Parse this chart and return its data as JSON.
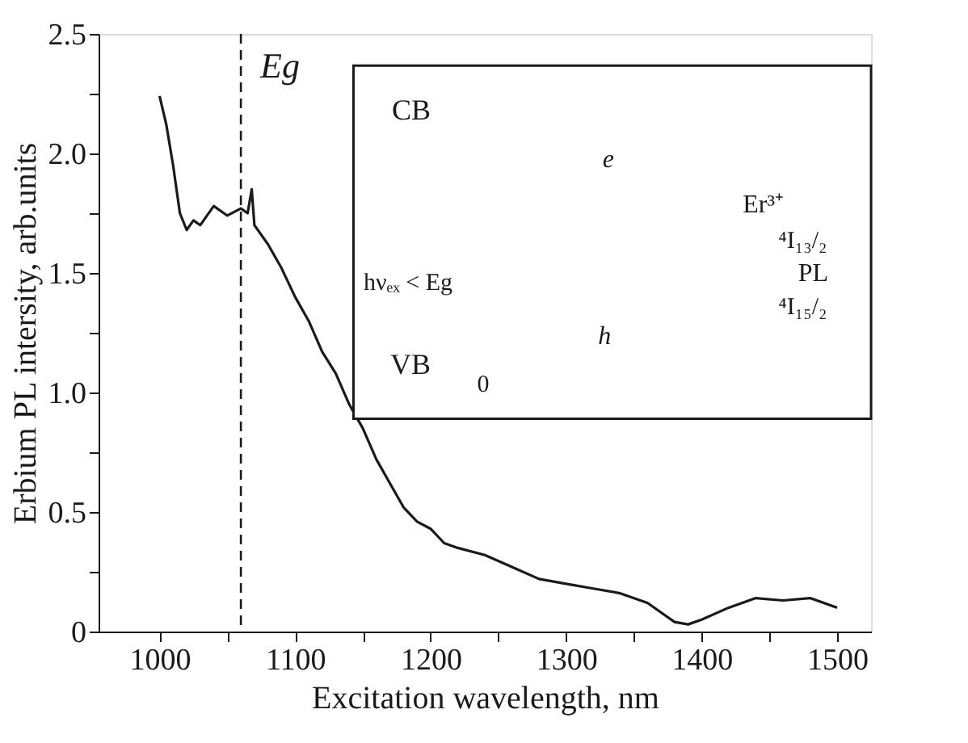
{
  "chart_data": {
    "type": "line",
    "xlabel": "Excitation wavelength, nm",
    "ylabel": "Erbium PL intersity, arb.units",
    "x": [
      1000,
      1005,
      1010,
      1015,
      1020,
      1025,
      1030,
      1040,
      1050,
      1060,
      1065,
      1068,
      1070,
      1080,
      1090,
      1100,
      1110,
      1120,
      1130,
      1140,
      1150,
      1160,
      1170,
      1180,
      1190,
      1200,
      1210,
      1220,
      1240,
      1260,
      1280,
      1300,
      1320,
      1340,
      1360,
      1380,
      1390,
      1400,
      1420,
      1440,
      1460,
      1480,
      1500
    ],
    "series": [
      {
        "color": "#1a1a1a",
        "values": [
          2.24,
          2.12,
          1.95,
          1.75,
          1.68,
          1.72,
          1.7,
          1.78,
          1.74,
          1.77,
          1.75,
          1.85,
          1.7,
          1.62,
          1.52,
          1.4,
          1.3,
          1.17,
          1.08,
          0.95,
          0.85,
          0.72,
          0.62,
          0.52,
          0.46,
          0.43,
          0.37,
          0.35,
          0.32,
          0.27,
          0.22,
          0.2,
          0.18,
          0.16,
          0.12,
          0.04,
          0.03,
          0.05,
          0.1,
          0.14,
          0.13,
          0.14,
          0.1
        ]
      }
    ],
    "xlim": [
      955,
      1525
    ],
    "ylim": [
      0,
      2.5
    ],
    "xticks": [
      1000,
      {
        "value": 1050,
        "label": null
      },
      1100,
      {
        "value": 1150,
        "label": null
      },
      1200,
      {
        "value": 1250,
        "label": null
      },
      1300,
      {
        "value": 1350,
        "label": null
      },
      1400,
      {
        "value": 1450,
        "label": null
      },
      1500
    ],
    "yticks": [
      0,
      {
        "value": 0.25,
        "label": null
      },
      0.5,
      {
        "value": 0.75,
        "label": null
      },
      {
        "value": 1,
        "label": "1.0"
      },
      {
        "value": 1.25,
        "label": null
      },
      1.5,
      {
        "value": 1.75,
        "label": null
      },
      {
        "value": 2,
        "label": "2.0"
      },
      {
        "value": 2.25,
        "label": null
      },
      2.5
    ],
    "ref_lines": [
      {
        "axis": "x",
        "value": 1060,
        "label": "Eg",
        "color": "#1a1a1a",
        "line_style": "dashed"
      }
    ],
    "annotations": [
      "CB",
      "VB",
      "0",
      "e",
      "h",
      "Er³⁺",
      "⁴I₁₃/₂",
      "PL",
      "⁴I₁₅/₂",
      "hνₑₓ < Eg"
    ],
    "grid": false,
    "marker": "none",
    "line_style": "solid"
  }
}
